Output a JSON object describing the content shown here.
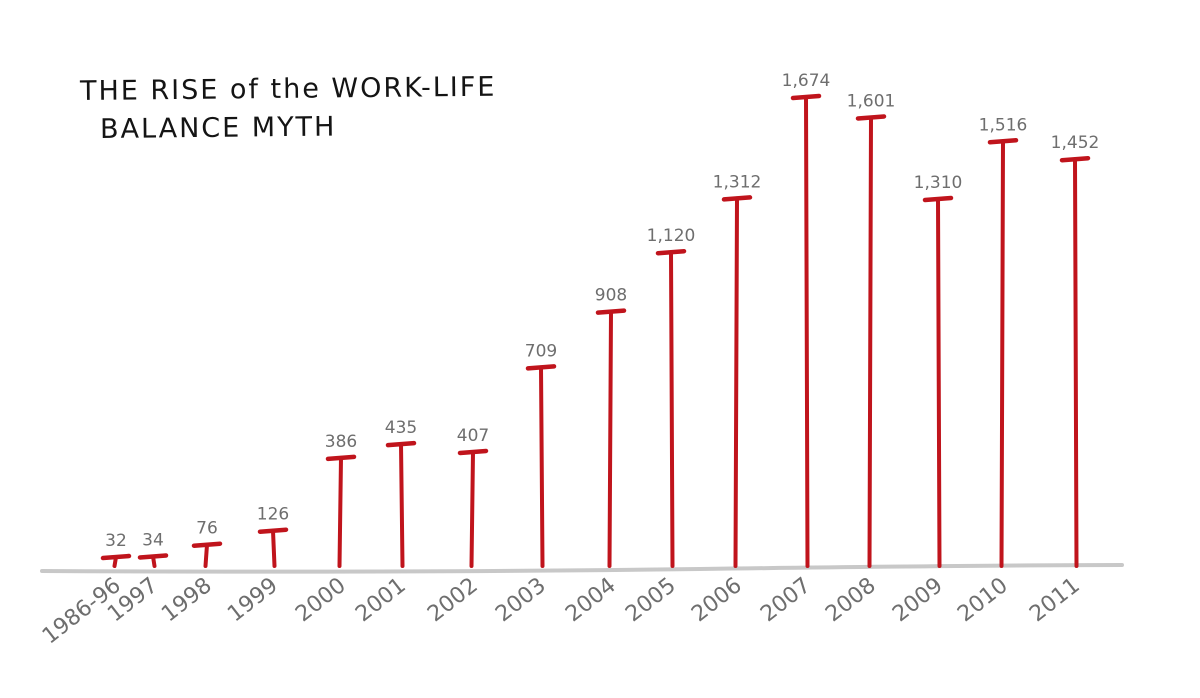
{
  "title": {
    "line1": "THE RISE of the WORK-LIFE",
    "line2": "BALANCE MYTH"
  },
  "colors": {
    "bar": "#c0141c",
    "label": "#6e6e6e",
    "axis": "#c8c8c8",
    "title": "#141414"
  },
  "chart_data": {
    "type": "bar",
    "title": "THE RISE of the WORK-LIFE BALANCE MYTH",
    "categories": [
      "1986-96",
      "1997",
      "1998",
      "1999",
      "2000",
      "2001",
      "2002",
      "2003",
      "2004",
      "2005",
      "2006",
      "2007",
      "2008",
      "2009",
      "2010",
      "2011"
    ],
    "values": [
      32,
      34,
      76,
      126,
      386,
      435,
      407,
      709,
      908,
      1120,
      1312,
      1674,
      1601,
      1310,
      1516,
      1452
    ],
    "value_labels": [
      "32",
      "34",
      "76",
      "126",
      "386",
      "435",
      "407",
      "709",
      "908",
      "1,120",
      "1,312",
      "1,674",
      "1,601",
      "1,310",
      "1,516",
      "1,452"
    ],
    "xlabel": "",
    "ylabel": "",
    "ylim": [
      0,
      1700
    ],
    "grid": false,
    "legend": "none"
  }
}
